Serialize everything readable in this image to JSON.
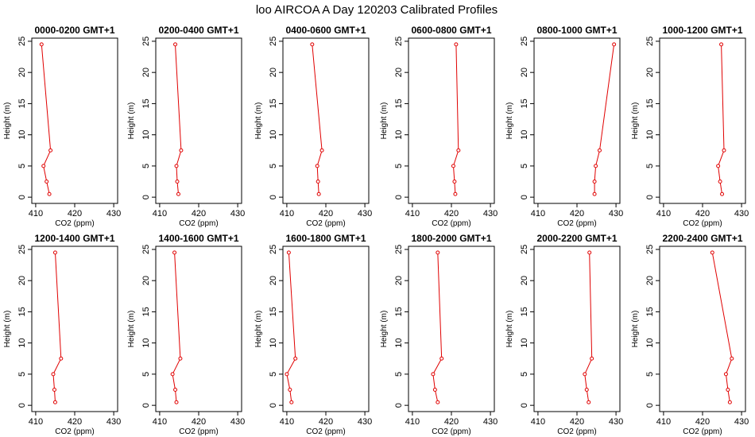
{
  "figure": {
    "title": "loo AIRCOA A  Day 120203  Calibrated Profiles"
  },
  "chart_data": {
    "type": "line",
    "xlabel": "CO2 (ppm)",
    "ylabel": "Height (m)",
    "xlim": [
      409,
      431
    ],
    "ylim": [
      -1,
      25.5
    ],
    "xticks": [
      410,
      420,
      430
    ],
    "yticks": [
      0,
      5,
      10,
      15,
      20,
      25
    ],
    "heights": [
      0.5,
      2.5,
      5,
      7.5,
      24.5
    ],
    "series_color": "#e00000",
    "grid": false,
    "panels": [
      {
        "title": "0000-0200 GMT+1",
        "co2": [
          413.5,
          412.8,
          412.0,
          413.8,
          411.5
        ]
      },
      {
        "title": "0200-0400 GMT+1",
        "co2": [
          414.8,
          414.5,
          414.3,
          415.5,
          414.0
        ]
      },
      {
        "title": "0400-0600 GMT+1",
        "co2": [
          418.2,
          418.0,
          417.8,
          419.0,
          416.5
        ]
      },
      {
        "title": "0600-0800 GMT+1",
        "co2": [
          421.0,
          420.8,
          420.5,
          421.8,
          421.2
        ]
      },
      {
        "title": "0800-1000 GMT+1",
        "co2": [
          424.5,
          424.5,
          424.8,
          425.8,
          429.5
        ]
      },
      {
        "title": "1000-1200 GMT+1",
        "co2": [
          425.0,
          424.5,
          424.0,
          425.5,
          424.8
        ]
      },
      {
        "title": "1200-1400 GMT+1",
        "co2": [
          415.0,
          414.8,
          414.5,
          416.5,
          415.0
        ]
      },
      {
        "title": "1400-1600 GMT+1",
        "co2": [
          414.3,
          414.0,
          413.3,
          415.3,
          413.8
        ]
      },
      {
        "title": "1600-1800 GMT+1",
        "co2": [
          411.2,
          410.8,
          410.0,
          412.2,
          410.5
        ]
      },
      {
        "title": "1800-2000 GMT+1",
        "co2": [
          416.5,
          415.8,
          415.3,
          417.5,
          416.5
        ]
      },
      {
        "title": "2000-2200 GMT+1",
        "co2": [
          423.0,
          422.5,
          422.0,
          423.8,
          423.2
        ]
      },
      {
        "title": "2200-2400 GMT+1",
        "co2": [
          427.0,
          426.5,
          426.0,
          427.5,
          422.5
        ]
      }
    ]
  }
}
